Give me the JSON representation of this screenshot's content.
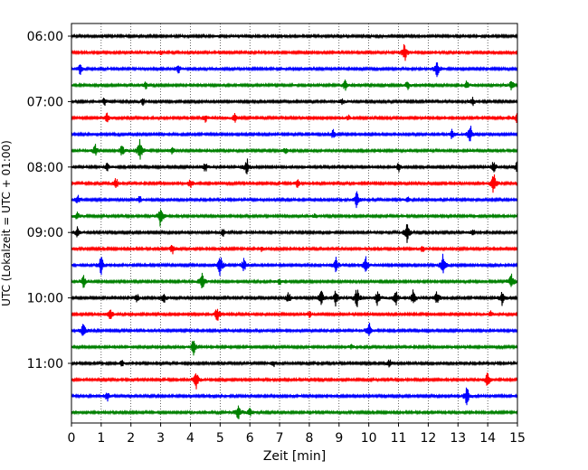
{
  "chart_data": {
    "type": "line",
    "title": "",
    "xlabel": "Zeit  [min]",
    "ylabel": "UTC (Lokalzeit = UTC + 01:00)",
    "xlim": [
      0,
      15
    ],
    "x_ticks": [
      "0",
      "1",
      "2",
      "3",
      "4",
      "5",
      "6",
      "7",
      "8",
      "9",
      "10",
      "11",
      "12",
      "13",
      "14",
      "15"
    ],
    "y_ticks": [
      "06:00",
      "07:00",
      "08:00",
      "09:00",
      "10:00",
      "11:00"
    ],
    "y_tick_rows": [
      0,
      4,
      8,
      12,
      16,
      20
    ],
    "x_grid": true,
    "x_grid_style": "dotted",
    "series": [
      {
        "time": "06:00",
        "color": "#000000",
        "events": [
          {
            "x": 5.6,
            "amp": 0.15
          }
        ]
      },
      {
        "time": "06:15",
        "color": "#ff0000",
        "events": [
          {
            "x": 11.2,
            "amp": 0.9
          },
          {
            "x": 3.0,
            "amp": 0.2
          }
        ]
      },
      {
        "time": "06:30",
        "color": "#0000ff",
        "events": [
          {
            "x": 0.3,
            "amp": 0.55
          },
          {
            "x": 3.6,
            "amp": 0.35
          },
          {
            "x": 12.3,
            "amp": 0.75
          }
        ]
      },
      {
        "time": "06:45",
        "color": "#008000",
        "events": [
          {
            "x": 2.5,
            "amp": 0.3
          },
          {
            "x": 9.2,
            "amp": 0.45
          },
          {
            "x": 11.3,
            "amp": 0.4
          },
          {
            "x": 13.3,
            "amp": 0.4
          },
          {
            "x": 14.8,
            "amp": 0.45
          }
        ]
      },
      {
        "time": "07:00",
        "color": "#000000",
        "events": [
          {
            "x": 1.1,
            "amp": 0.35
          },
          {
            "x": 2.4,
            "amp": 0.3
          },
          {
            "x": 9.1,
            "amp": 0.3
          },
          {
            "x": 13.5,
            "amp": 0.35
          }
        ]
      },
      {
        "time": "07:15",
        "color": "#ff0000",
        "events": [
          {
            "x": 1.2,
            "amp": 0.45
          },
          {
            "x": 4.5,
            "amp": 0.35
          },
          {
            "x": 5.5,
            "amp": 0.55
          },
          {
            "x": 9.3,
            "amp": 0.25
          },
          {
            "x": 15.0,
            "amp": 0.75
          }
        ]
      },
      {
        "time": "07:30",
        "color": "#0000ff",
        "events": [
          {
            "x": 8.8,
            "amp": 0.4
          },
          {
            "x": 12.8,
            "amp": 0.5
          },
          {
            "x": 13.4,
            "amp": 0.95
          }
        ]
      },
      {
        "time": "07:45",
        "color": "#008000",
        "events": [
          {
            "x": 0.8,
            "amp": 0.55
          },
          {
            "x": 1.7,
            "amp": 0.55
          },
          {
            "x": 2.3,
            "amp": 1.0
          },
          {
            "x": 3.4,
            "amp": 0.35
          },
          {
            "x": 7.2,
            "amp": 0.3
          }
        ]
      },
      {
        "time": "08:00",
        "color": "#000000",
        "events": [
          {
            "x": 1.2,
            "amp": 0.35
          },
          {
            "x": 4.5,
            "amp": 0.45
          },
          {
            "x": 5.9,
            "amp": 0.8
          },
          {
            "x": 11.0,
            "amp": 0.4
          },
          {
            "x": 14.2,
            "amp": 0.55
          },
          {
            "x": 15.0,
            "amp": 0.75
          }
        ]
      },
      {
        "time": "08:15",
        "color": "#ff0000",
        "events": [
          {
            "x": 1.5,
            "amp": 0.45
          },
          {
            "x": 4.0,
            "amp": 0.45
          },
          {
            "x": 7.6,
            "amp": 0.35
          },
          {
            "x": 14.2,
            "amp": 0.95
          }
        ]
      },
      {
        "time": "08:30",
        "color": "#0000ff",
        "events": [
          {
            "x": 0.2,
            "amp": 0.45
          },
          {
            "x": 2.3,
            "amp": 0.35
          },
          {
            "x": 9.6,
            "amp": 0.75
          },
          {
            "x": 11.3,
            "amp": 0.3
          }
        ]
      },
      {
        "time": "08:45",
        "color": "#008000",
        "events": [
          {
            "x": 0.2,
            "amp": 0.35
          },
          {
            "x": 3.0,
            "amp": 1.0
          },
          {
            "x": 8.2,
            "amp": 0.25
          }
        ]
      },
      {
        "time": "09:00",
        "color": "#000000",
        "events": [
          {
            "x": 0.2,
            "amp": 0.5
          },
          {
            "x": 5.1,
            "amp": 0.3
          },
          {
            "x": 11.3,
            "amp": 0.9
          },
          {
            "x": 13.5,
            "amp": 0.3
          }
        ]
      },
      {
        "time": "09:15",
        "color": "#ff0000",
        "events": [
          {
            "x": 3.4,
            "amp": 0.45
          },
          {
            "x": 6.4,
            "amp": 0.3
          },
          {
            "x": 11.8,
            "amp": 0.3
          }
        ]
      },
      {
        "time": "09:30",
        "color": "#0000ff",
        "events": [
          {
            "x": 1.0,
            "amp": 0.85
          },
          {
            "x": 5.0,
            "amp": 1.0
          },
          {
            "x": 5.8,
            "amp": 0.6
          },
          {
            "x": 8.9,
            "amp": 0.7
          },
          {
            "x": 9.9,
            "amp": 0.75
          },
          {
            "x": 12.5,
            "amp": 1.0
          }
        ]
      },
      {
        "time": "09:45",
        "color": "#008000",
        "events": [
          {
            "x": 0.4,
            "amp": 0.55
          },
          {
            "x": 4.4,
            "amp": 0.85
          },
          {
            "x": 7.0,
            "amp": 0.3
          },
          {
            "x": 14.8,
            "amp": 0.8
          }
        ]
      },
      {
        "time": "10:00",
        "color": "#000000",
        "events": [
          {
            "x": 2.2,
            "amp": 0.35
          },
          {
            "x": 3.1,
            "amp": 0.5
          },
          {
            "x": 7.3,
            "amp": 0.5
          },
          {
            "x": 8.4,
            "amp": 0.75
          },
          {
            "x": 8.9,
            "amp": 0.75
          },
          {
            "x": 9.6,
            "amp": 0.9
          },
          {
            "x": 10.3,
            "amp": 0.75
          },
          {
            "x": 10.9,
            "amp": 0.75
          },
          {
            "x": 11.5,
            "amp": 0.75
          },
          {
            "x": 12.3,
            "amp": 0.6
          },
          {
            "x": 14.5,
            "amp": 0.75
          }
        ]
      },
      {
        "time": "10:15",
        "color": "#ff0000",
        "events": [
          {
            "x": 1.3,
            "amp": 0.55
          },
          {
            "x": 4.9,
            "amp": 0.7
          },
          {
            "x": 8.0,
            "amp": 0.3
          },
          {
            "x": 14.1,
            "amp": 0.3
          }
        ]
      },
      {
        "time": "10:30",
        "color": "#0000ff",
        "events": [
          {
            "x": 0.4,
            "amp": 0.75
          },
          {
            "x": 10.0,
            "amp": 0.75
          }
        ]
      },
      {
        "time": "10:45",
        "color": "#008000",
        "events": [
          {
            "x": 4.1,
            "amp": 0.7
          },
          {
            "x": 9.4,
            "amp": 0.2
          }
        ]
      },
      {
        "time": "11:00",
        "color": "#000000",
        "events": [
          {
            "x": 1.7,
            "amp": 0.25
          },
          {
            "x": 6.8,
            "amp": 0.25
          },
          {
            "x": 10.7,
            "amp": 0.35
          }
        ]
      },
      {
        "time": "11:15",
        "color": "#ff0000",
        "events": [
          {
            "x": 4.2,
            "amp": 0.8
          },
          {
            "x": 14.0,
            "amp": 0.8
          }
        ]
      },
      {
        "time": "11:30",
        "color": "#0000ff",
        "events": [
          {
            "x": 1.2,
            "amp": 0.45
          },
          {
            "x": 13.3,
            "amp": 0.85
          }
        ]
      },
      {
        "time": "11:45",
        "color": "#008000",
        "events": [
          {
            "x": 5.6,
            "amp": 0.8
          },
          {
            "x": 6.0,
            "amp": 0.35
          }
        ]
      }
    ]
  }
}
